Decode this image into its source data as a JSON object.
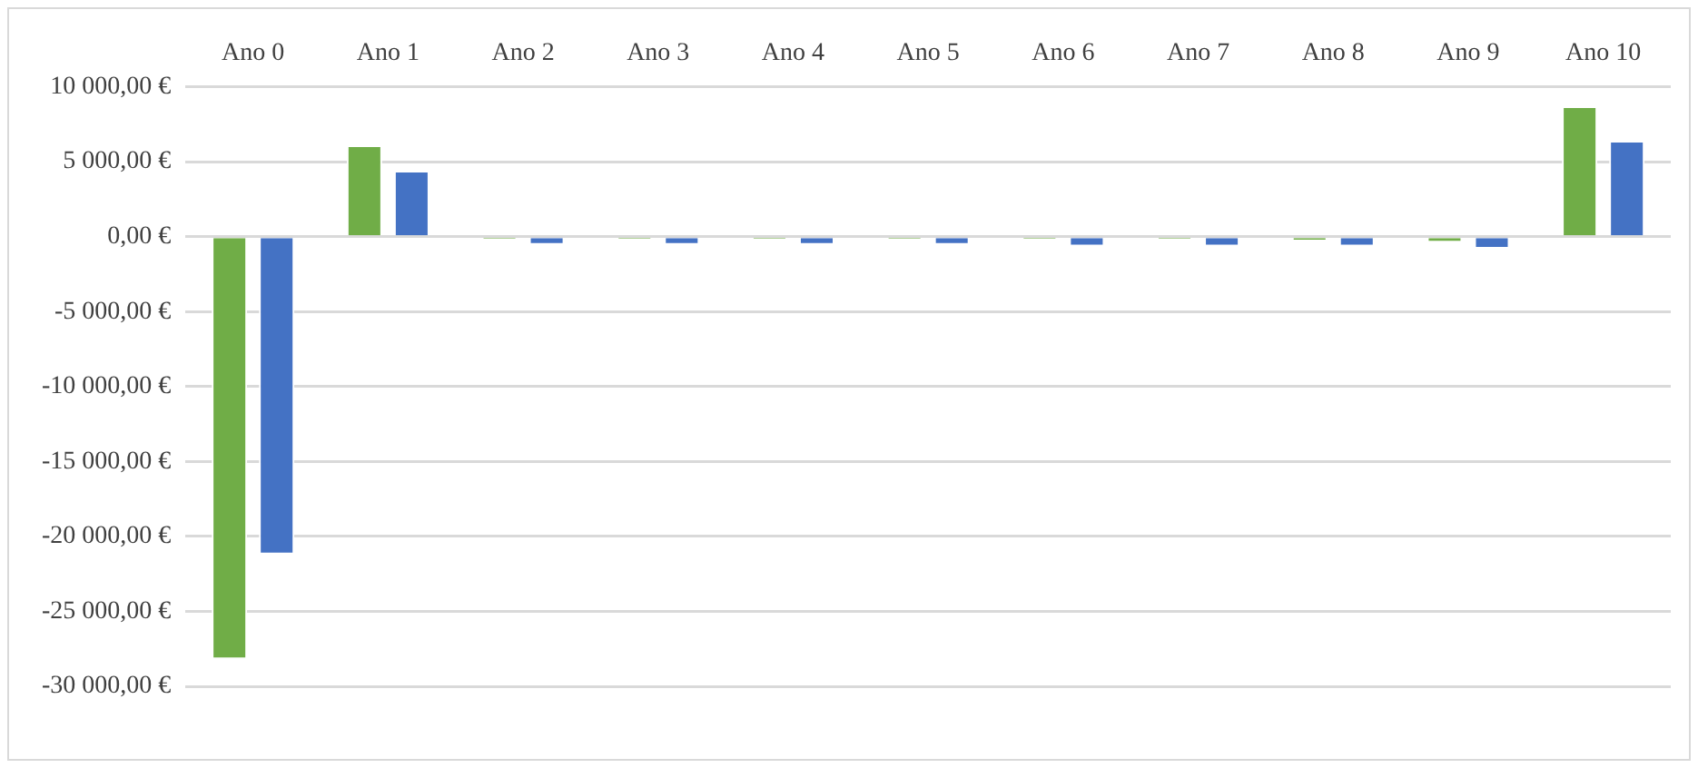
{
  "chart_data": {
    "type": "bar",
    "categories": [
      "Ano 0",
      "Ano 1",
      "Ano 2",
      "Ano 3",
      "Ano 4",
      "Ano 5",
      "Ano 6",
      "Ano 7",
      "Ano 8",
      "Ano 9",
      "Ano 10"
    ],
    "series": [
      {
        "color": "#70ad47",
        "values": [
          -28200,
          6100,
          -200,
          -200,
          -200,
          -200,
          -200,
          -200,
          -300,
          -400,
          8700
        ]
      },
      {
        "color": "#4472c4",
        "values": [
          -21200,
          4400,
          -550,
          -550,
          -550,
          -550,
          -650,
          -650,
          -650,
          -800,
          6400
        ]
      }
    ],
    "ylim": [
      -30000,
      10000
    ],
    "yticks": [
      {
        "value": -30000,
        "label": "-30 000,00 €"
      },
      {
        "value": -25000,
        "label": "-25 000,00 €"
      },
      {
        "value": -20000,
        "label": "-20 000,00 €"
      },
      {
        "value": -15000,
        "label": "-15 000,00 €"
      },
      {
        "value": -10000,
        "label": "-10 000,00 €"
      },
      {
        "value": -5000,
        "label": "-5 000,00 €"
      },
      {
        "value": 0,
        "label": "0,00 €"
      },
      {
        "value": 5000,
        "label": "5 000,00 €"
      },
      {
        "value": 10000,
        "label": "10 000,00 €"
      }
    ],
    "grid": "y"
  }
}
